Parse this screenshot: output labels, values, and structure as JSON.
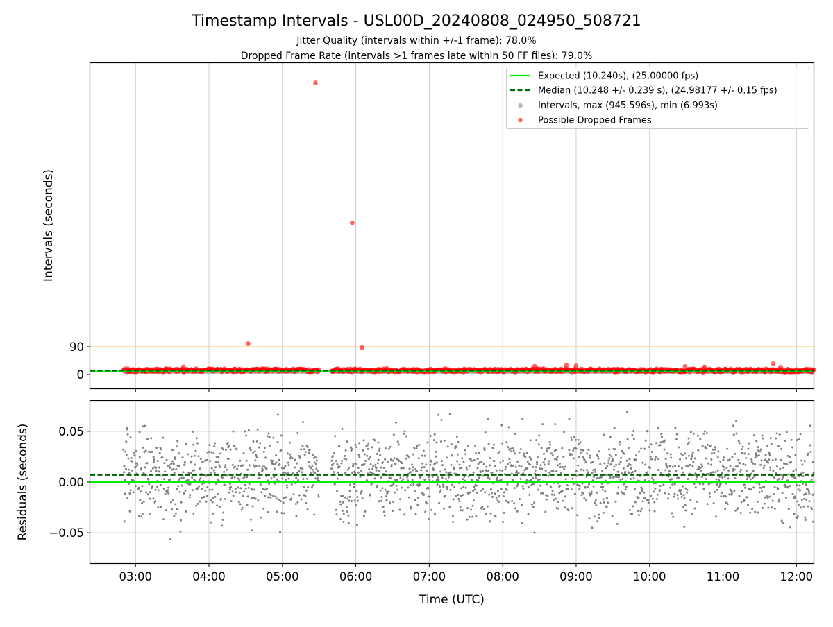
{
  "colors": {
    "expected": "#00ee00",
    "median": "#006400",
    "intervals": "#808080",
    "dropped": "#ff0000",
    "threshold": "#ffa500",
    "grid": "#b0b0b0"
  },
  "chart_data": {
    "type": "scatter",
    "title": "Timestamp Intervals - USL00D_20240808_024950_508721",
    "subtitle_lines": [
      "Jitter Quality (intervals within +/-1 frame): 78.0%",
      "Dropped Frame Rate (intervals >1 frames late within 50 FF files): 79.0%"
    ],
    "xlabel": "Time (UTC)",
    "x_time_range": [
      "02:23",
      "12:14"
    ],
    "x_ticks": [
      "03:00",
      "04:00",
      "05:00",
      "06:00",
      "07:00",
      "08:00",
      "09:00",
      "10:00",
      "11:00",
      "12:00"
    ],
    "grid": true,
    "top_panel": {
      "ylabel": "Intervals (seconds)",
      "y_ticks": [
        0,
        90
      ],
      "ylim": [
        -45,
        1010
      ],
      "threshold_line": 90,
      "expected_interval": 10.24,
      "median_interval": 10.248,
      "legend_placement": "top-right",
      "legend": [
        "Expected (10.240s), (25.00000 fps)",
        "Median (10.248 +/- 0.239 s), (24.98177 +/- 0.15 fps)",
        "Intervals, max (945.596s), min (6.993s)",
        "Possible Dropped Frames"
      ],
      "segments": [
        [
          "02:50",
          "05:30"
        ],
        [
          "05:40",
          "12:14"
        ]
      ],
      "dropped_outliers": [
        {
          "t": "05:27",
          "v": 945.6
        },
        {
          "t": "05:57",
          "v": 492
        },
        {
          "t": "04:32",
          "v": 100
        },
        {
          "t": "06:05",
          "v": 87
        },
        {
          "t": "03:39",
          "v": 25
        },
        {
          "t": "06:25",
          "v": 21
        },
        {
          "t": "08:26",
          "v": 27
        },
        {
          "t": "08:52",
          "v": 30
        },
        {
          "t": "09:00",
          "v": 28
        },
        {
          "t": "10:29",
          "v": 26
        },
        {
          "t": "10:45",
          "v": 25
        },
        {
          "t": "11:41",
          "v": 35
        },
        {
          "t": "11:47",
          "v": 24
        },
        {
          "t": "12:14",
          "v": 15
        }
      ]
    },
    "bottom_panel": {
      "ylabel": "Residuals (seconds)",
      "y_ticks": [
        "0.05",
        "0.00",
        "−0.05"
      ],
      "y_tick_values": [
        0.05,
        0.0,
        -0.05
      ],
      "ylim": [
        -0.08,
        0.08
      ],
      "expected_residual": 0.0,
      "median_residual": 0.007
    }
  }
}
